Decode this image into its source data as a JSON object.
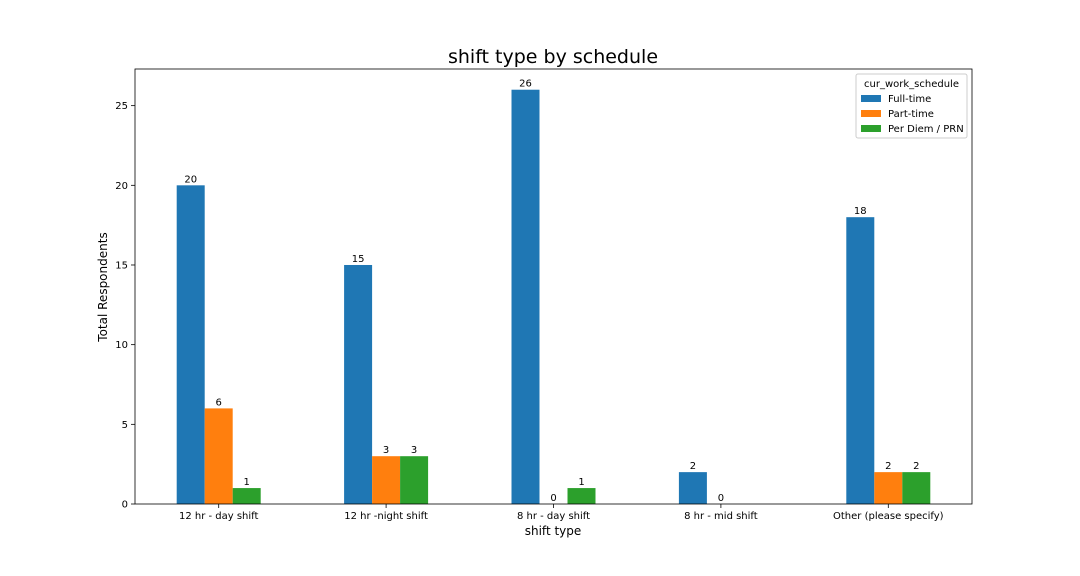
{
  "chart_data": {
    "type": "bar",
    "title": "shift type by schedule",
    "xlabel": "shift type",
    "ylabel": "Total Respondents",
    "categories": [
      "12 hr - day shift",
      "12 hr -night shift",
      "8 hr - day shift",
      "8 hr - mid shift",
      "Other (please specify)"
    ],
    "series": [
      {
        "name": "Full-time",
        "values": [
          20,
          15,
          26,
          2,
          18
        ],
        "color": "#1f77b4"
      },
      {
        "name": "Part-time",
        "values": [
          6,
          3,
          0,
          0,
          2
        ],
        "color": "#ff7f0e"
      },
      {
        "name": "Per Diem / PRN",
        "values": [
          1,
          3,
          1,
          0,
          2
        ],
        "color": "#2ca02c"
      }
    ],
    "data_labels": [
      [
        "20",
        "15",
        "26",
        "2",
        "18"
      ],
      [
        "6",
        "3",
        "0",
        "0",
        "2"
      ],
      [
        "1",
        "3",
        "1",
        "",
        "2"
      ]
    ],
    "ylim": [
      0,
      27.3
    ],
    "yticks": [
      0,
      5,
      10,
      15,
      20,
      25
    ],
    "legend": {
      "title": "cur_work_schedule",
      "placement": "top-right"
    },
    "grid": false
  }
}
